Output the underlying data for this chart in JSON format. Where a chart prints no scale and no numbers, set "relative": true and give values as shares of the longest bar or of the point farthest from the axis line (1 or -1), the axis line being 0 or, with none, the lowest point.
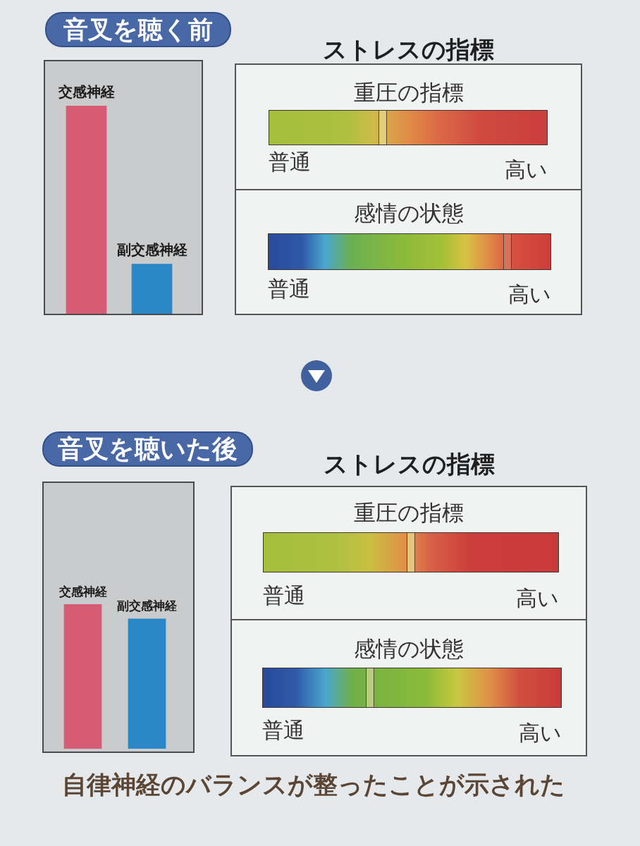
{
  "chart_data": [
    {
      "type": "bar",
      "title": "音叉を聴く前",
      "categories": [
        "交感神経",
        "副交感神経"
      ],
      "values": [
        1,
        0.24
      ],
      "colors": [
        "#d65c76",
        "#2a87c8"
      ],
      "relative": true
    },
    {
      "type": "other",
      "title": "ストレスの指標",
      "subtitle": "重圧の指標",
      "annotations": [
        "普通",
        "高い"
      ]
    },
    {
      "type": "other",
      "title": "感情の状態",
      "annotations": [
        "普通",
        "高い"
      ]
    },
    {
      "type": "bar",
      "title": "音叉を聴いた後",
      "categories": [
        "交感神経",
        "副交感神経"
      ],
      "values": [
        1,
        0.9
      ],
      "colors": [
        "#d65c76",
        "#2a87c8"
      ],
      "relative": true
    },
    {
      "type": "other",
      "title": "ストレスの指標",
      "subtitle": "重圧の指標",
      "annotations": [
        "普通",
        "高い"
      ]
    },
    {
      "type": "other",
      "title": "感情の状態",
      "annotations": [
        "普通",
        "高い",
        "自律神経のバランスが整ったことが示された"
      ]
    }
  ]
}
